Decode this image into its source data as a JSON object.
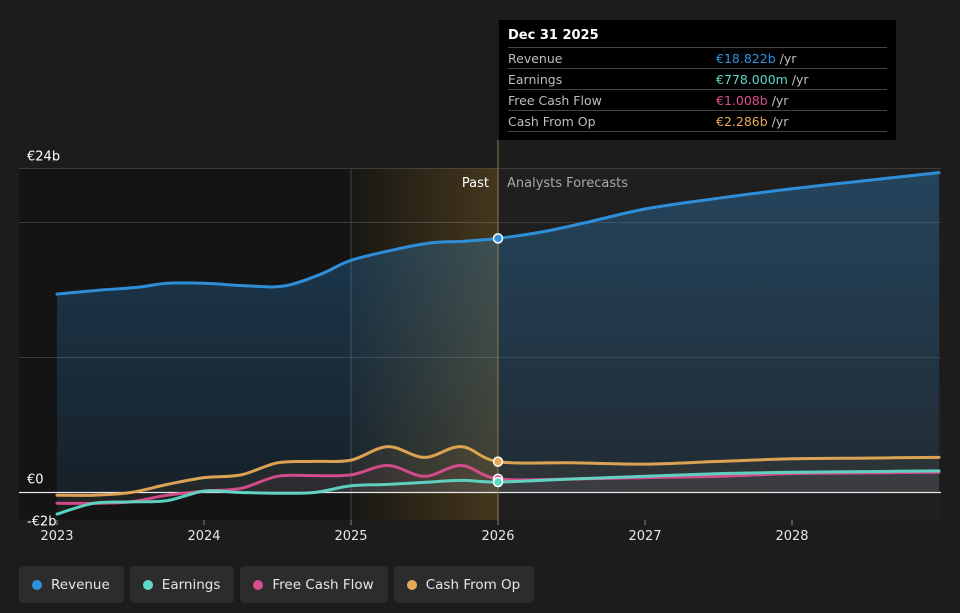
{
  "chart_data": {
    "type": "area",
    "x_ticks": [
      "2023",
      "2024",
      "2025",
      "2026",
      "2027",
      "2028"
    ],
    "y_ticks": [
      "€24b",
      "€0",
      "-€2b"
    ],
    "ylim": [
      -2,
      24
    ],
    "xlim": [
      2023,
      2029
    ],
    "past_label": "Past",
    "forecast_label": "Analysts Forecasts",
    "highlight_band": [
      2025,
      2026
    ],
    "series": [
      {
        "name": "Revenue",
        "color": "#2f93e0",
        "x": [
          2023.0,
          2023.3,
          2023.55,
          2023.75,
          2024.0,
          2024.3,
          2024.55,
          2024.8,
          2025.0,
          2025.3,
          2025.55,
          2025.75,
          2026.0,
          2026.3,
          2026.6,
          2027.0,
          2027.5,
          2028.0,
          2028.5,
          2029.0
        ],
        "y": [
          14.7,
          15.0,
          15.2,
          15.5,
          15.5,
          15.3,
          15.3,
          16.2,
          17.2,
          18.0,
          18.5,
          18.6,
          18.822,
          19.3,
          20.0,
          21.0,
          21.8,
          22.5,
          23.1,
          23.7
        ]
      },
      {
        "name": "Earnings",
        "color": "#5fd8c6",
        "x": [
          2023.0,
          2023.25,
          2023.5,
          2023.75,
          2024.0,
          2024.25,
          2024.5,
          2024.75,
          2025.0,
          2025.25,
          2025.5,
          2025.75,
          2026.0,
          2026.5,
          2027.0,
          2027.5,
          2028.0,
          2028.5,
          2029.0
        ],
        "y": [
          -1.6,
          -0.8,
          -0.7,
          -0.6,
          0.1,
          0.0,
          -0.05,
          0.0,
          0.5,
          0.6,
          0.75,
          0.9,
          0.778,
          1.0,
          1.2,
          1.4,
          1.5,
          1.55,
          1.6
        ]
      },
      {
        "name": "Free Cash Flow",
        "color": "#d94d8e",
        "x": [
          2023.0,
          2023.25,
          2023.5,
          2023.75,
          2024.0,
          2024.25,
          2024.5,
          2024.75,
          2025.0,
          2025.25,
          2025.5,
          2025.75,
          2026.0,
          2026.5,
          2027.0,
          2027.5,
          2028.0,
          2028.5,
          2029.0
        ],
        "y": [
          -0.8,
          -0.8,
          -0.7,
          -0.2,
          0.1,
          0.3,
          1.2,
          1.25,
          1.3,
          2.0,
          1.2,
          2.0,
          1.008,
          1.0,
          1.1,
          1.2,
          1.4,
          1.45,
          1.5
        ]
      },
      {
        "name": "Cash From Op",
        "color": "#e6a955",
        "x": [
          2023.0,
          2023.25,
          2023.5,
          2023.75,
          2024.0,
          2024.25,
          2024.5,
          2024.75,
          2025.0,
          2025.25,
          2025.5,
          2025.75,
          2026.0,
          2026.5,
          2027.0,
          2027.5,
          2028.0,
          2028.5,
          2029.0
        ],
        "y": [
          -0.2,
          -0.2,
          0.0,
          0.6,
          1.1,
          1.3,
          2.2,
          2.3,
          2.4,
          3.4,
          2.6,
          3.4,
          2.286,
          2.2,
          2.1,
          2.3,
          2.5,
          2.55,
          2.6
        ]
      }
    ],
    "legend": [
      "Revenue",
      "Earnings",
      "Free Cash Flow",
      "Cash From Op"
    ],
    "legend_placement": "bottom-left",
    "grid": true
  },
  "tooltip": {
    "date": "Dec 31 2025",
    "unit": "/yr",
    "rows": [
      {
        "label": "Revenue",
        "value": "€18.822b",
        "color": "#2f93e0"
      },
      {
        "label": "Earnings",
        "value": "€778.000m",
        "color": "#5fd8c6"
      },
      {
        "label": "Free Cash Flow",
        "value": "€1.008b",
        "color": "#d94d8e"
      },
      {
        "label": "Cash From Op",
        "value": "€2.286b",
        "color": "#e6a955"
      }
    ]
  }
}
